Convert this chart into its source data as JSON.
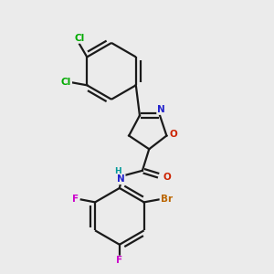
{
  "background_color": "#ebebeb",
  "bond_color": "#1a1a1a",
  "atom_colors": {
    "Cl": "#00aa00",
    "N": "#2222cc",
    "O": "#cc2200",
    "F": "#cc00cc",
    "Br": "#bb6600",
    "H": "#009999",
    "C": "#1a1a1a"
  },
  "lw": 1.6
}
